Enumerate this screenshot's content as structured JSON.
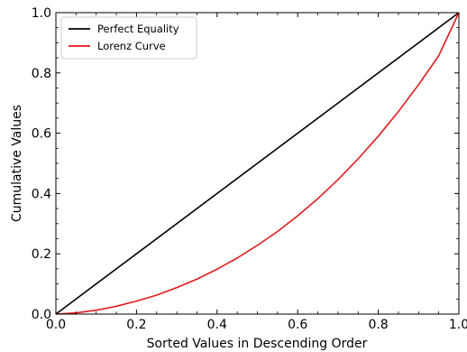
{
  "chart_data": {
    "type": "line",
    "title": "",
    "xlabel": "Sorted Values in Descending Order",
    "ylabel": "Cumulative Values",
    "xlim": [
      0,
      1
    ],
    "ylim": [
      0,
      1
    ],
    "x_ticks": [
      0.0,
      0.2,
      0.4,
      0.6,
      0.8,
      1.0
    ],
    "x_tick_labels": [
      "0.0",
      "0.2",
      "0.4",
      "0.6",
      "0.8",
      "1.0"
    ],
    "y_ticks": [
      0.0,
      0.2,
      0.4,
      0.6,
      0.8,
      1.0
    ],
    "y_tick_labels": [
      "0.0",
      "0.2",
      "0.4",
      "0.6",
      "0.8",
      "1.0"
    ],
    "grid": false,
    "legend_position": "top-left",
    "series": [
      {
        "name": "Perfect Equality",
        "color": "#000000",
        "x": [
          0.0,
          1.0
        ],
        "y": [
          0.0,
          1.0
        ]
      },
      {
        "name": "Lorenz Curve",
        "color": "#e31a1c",
        "x": [
          0.0,
          0.05,
          0.1,
          0.15,
          0.2,
          0.25,
          0.3,
          0.35,
          0.4,
          0.45,
          0.5,
          0.55,
          0.6,
          0.65,
          0.7,
          0.75,
          0.8,
          0.85,
          0.9,
          0.95,
          1.0
        ],
        "y": [
          0.0,
          0.004,
          0.013,
          0.026,
          0.043,
          0.063,
          0.088,
          0.116,
          0.149,
          0.186,
          0.228,
          0.274,
          0.326,
          0.383,
          0.446,
          0.515,
          0.59,
          0.672,
          0.761,
          0.857,
          1.0
        ]
      }
    ]
  }
}
